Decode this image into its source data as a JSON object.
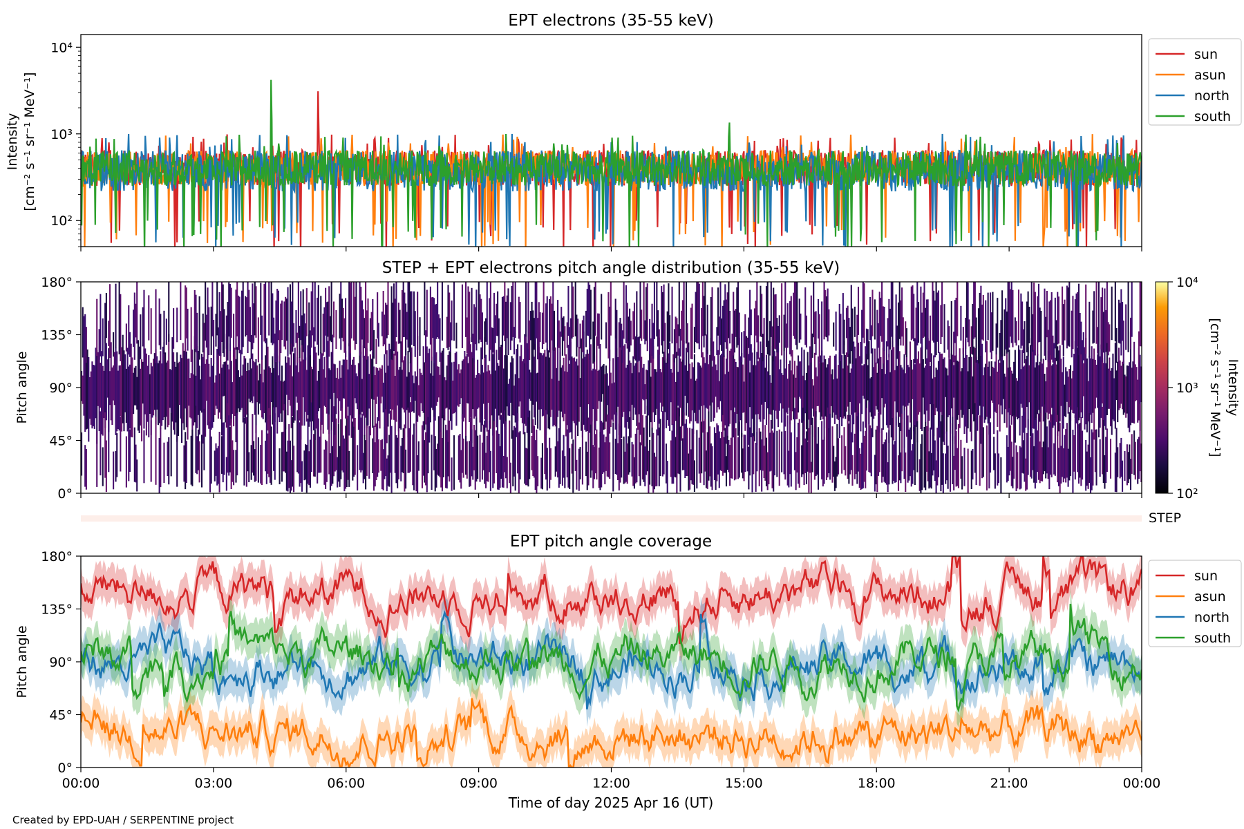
{
  "credit": "Created by EPD-UAH / SERPENTINE project",
  "colors": {
    "sun": "#d62728",
    "asun": "#ff7f0e",
    "north": "#1f77b4",
    "south": "#2ca02c",
    "step_bar": "#fdeee9"
  },
  "chart_data": [
    {
      "type": "line",
      "title": "EPT electrons (35-55 keV)",
      "ylabel": [
        "Intensity",
        "[cm⁻² s⁻¹ sr⁻¹ MeV⁻¹]"
      ],
      "yscale": "log",
      "ylim": [
        50,
        14000
      ],
      "yticks": [
        {
          "v": 100,
          "label": "10²"
        },
        {
          "v": 1000,
          "label": "10³"
        },
        {
          "v": 10000,
          "label": "10⁴"
        }
      ],
      "x_hours": [
        0,
        24
      ],
      "legend": {
        "placement": "outside-right",
        "entries": [
          "sun",
          "asun",
          "north",
          "south"
        ]
      },
      "series": [
        {
          "name": "sun",
          "typical": [
            150,
            650
          ],
          "spikes": [
            {
              "x": 5.37,
              "y": 3100
            }
          ]
        },
        {
          "name": "asun",
          "typical": [
            150,
            650
          ],
          "spikes": []
        },
        {
          "name": "north",
          "typical": [
            120,
            650
          ],
          "spikes": []
        },
        {
          "name": "south",
          "typical": [
            150,
            650
          ],
          "spikes": [
            {
              "x": 4.3,
              "y": 4200
            },
            {
              "x": 14.68,
              "y": 1350
            }
          ]
        }
      ]
    },
    {
      "type": "heatmap",
      "title": "STEP + EPT electrons pitch angle distribution (35-55 keV)",
      "ylabel": "Pitch angle",
      "ylim": [
        0,
        180
      ],
      "yticks": [
        "0°",
        "45°",
        "90°",
        "135°",
        "180°"
      ],
      "colorbar": {
        "label": [
          "Intensity",
          "[cm⁻² s⁻¹ sr⁻¹ MeV⁻¹]"
        ],
        "scale": "log",
        "range": [
          100,
          10000
        ],
        "ticks": [
          {
            "v": 100,
            "label": "10²"
          },
          {
            "v": 1000,
            "label": "10³"
          },
          {
            "v": 10000,
            "label": "10⁴"
          }
        ]
      },
      "dominant_level": 250,
      "step_label": "STEP"
    },
    {
      "type": "line",
      "title": "EPT pitch angle coverage",
      "ylabel": "Pitch angle",
      "xlabel": "Time of day 2025 Apr 16 (UT)",
      "ylim": [
        0,
        180
      ],
      "yticks": [
        {
          "v": 0,
          "label": "0°"
        },
        {
          "v": 45,
          "label": "45°"
        },
        {
          "v": 90,
          "label": "90°"
        },
        {
          "v": 135,
          "label": "135°"
        },
        {
          "v": 180,
          "label": "180°"
        }
      ],
      "xticks": [
        {
          "v": 0,
          "label": "00:00"
        },
        {
          "v": 3,
          "label": "03:00"
        },
        {
          "v": 6,
          "label": "06:00"
        },
        {
          "v": 9,
          "label": "09:00"
        },
        {
          "v": 12,
          "label": "12:00"
        },
        {
          "v": 15,
          "label": "15:00"
        },
        {
          "v": 18,
          "label": "18:00"
        },
        {
          "v": 21,
          "label": "21:00"
        },
        {
          "v": 24,
          "label": "00:00"
        }
      ],
      "legend": {
        "placement": "outside-right",
        "entries": [
          "sun",
          "asun",
          "north",
          "south"
        ]
      },
      "series": [
        {
          "name": "sun",
          "mean": 150,
          "band": 15
        },
        {
          "name": "asun",
          "mean": 30,
          "band": 15
        },
        {
          "name": "north",
          "mean": 88,
          "band": 15
        },
        {
          "name": "south",
          "mean": 95,
          "band": 15
        }
      ]
    }
  ]
}
